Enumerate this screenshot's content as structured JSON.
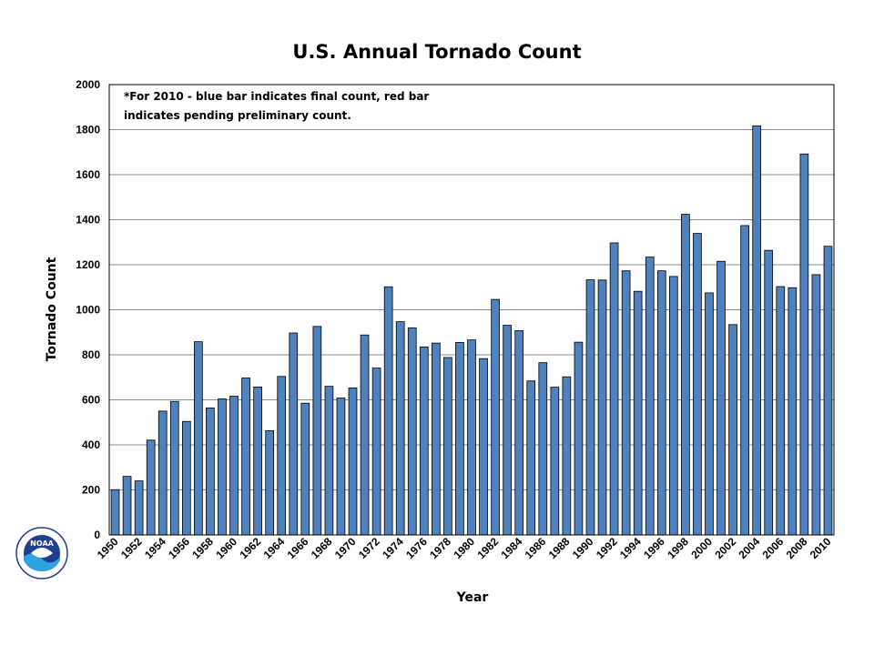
{
  "chart_data": {
    "type": "bar",
    "title": "U.S. Annual Tornado Count",
    "xlabel": "Year",
    "ylabel": "Tornado Count",
    "ylim": [
      0,
      2000
    ],
    "yticks": [
      "0",
      "200",
      "400",
      "600",
      "800",
      "1000",
      "1200",
      "1400",
      "1600",
      "1800",
      "2000"
    ],
    "grid": true,
    "legend": "none",
    "annotation": {
      "line1": "*For 2010 - blue bar indicates final count, red bar",
      "line2": "indicates pending preliminary count."
    },
    "categories": [
      "1950",
      "1951",
      "1952",
      "1953",
      "1954",
      "1955",
      "1956",
      "1957",
      "1958",
      "1959",
      "1960",
      "1961",
      "1962",
      "1963",
      "1964",
      "1965",
      "1966",
      "1967",
      "1968",
      "1969",
      "1970",
      "1971",
      "1972",
      "1973",
      "1974",
      "1975",
      "1976",
      "1977",
      "1978",
      "1979",
      "1980",
      "1981",
      "1982",
      "1983",
      "1984",
      "1985",
      "1986",
      "1987",
      "1988",
      "1989",
      "1990",
      "1991",
      "1992",
      "1993",
      "1994",
      "1995",
      "1996",
      "1997",
      "1998",
      "1999",
      "2000",
      "2001",
      "2002",
      "2003",
      "2004",
      "2005",
      "2006",
      "2007",
      "2008",
      "2009",
      "2010"
    ],
    "xticks": [
      "1950",
      "1952",
      "1954",
      "1956",
      "1958",
      "1960",
      "1962",
      "1964",
      "1966",
      "1968",
      "1970",
      "1972",
      "1974",
      "1976",
      "1978",
      "1980",
      "1982",
      "1984",
      "1986",
      "1988",
      "1990",
      "1992",
      "1994",
      "1996",
      "1998",
      "2000",
      "2002",
      "2004",
      "2006",
      "2008",
      "2010"
    ],
    "values": [
      201,
      260,
      240,
      421,
      550,
      593,
      504,
      858,
      564,
      604,
      616,
      697,
      657,
      463,
      704,
      897,
      585,
      926,
      660,
      608,
      653,
      888,
      741,
      1102,
      947,
      920,
      835,
      852,
      788,
      855,
      866,
      783,
      1046,
      931,
      907,
      684,
      765,
      656,
      702,
      856,
      1133,
      1132,
      1297,
      1173,
      1082,
      1234,
      1173,
      1148,
      1424,
      1339,
      1075,
      1215,
      934,
      1374,
      1817,
      1264,
      1103,
      1098,
      1692,
      1156,
      1282
    ],
    "bar_color": "#4f81bd"
  },
  "logo": {
    "text": "NOAA",
    "colors": {
      "dark_blue": "#1f3f8f",
      "light_blue": "#2fa2e0",
      "white": "#ffffff"
    }
  }
}
